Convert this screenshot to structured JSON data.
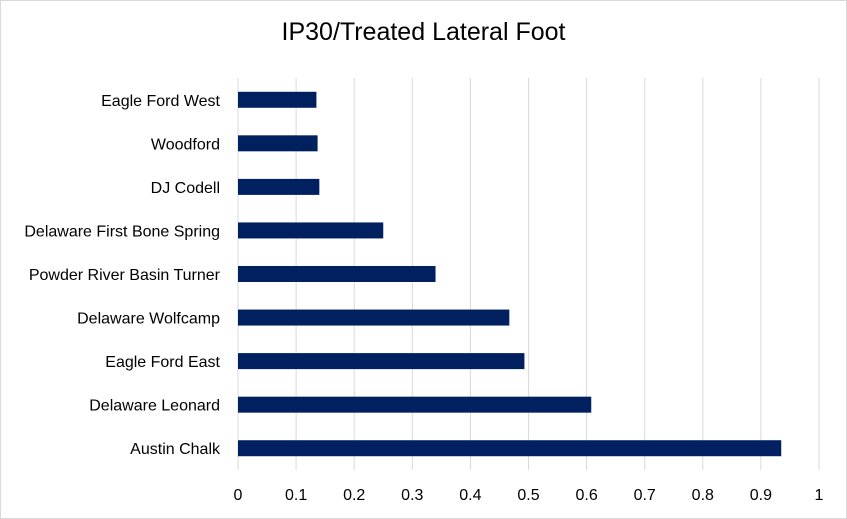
{
  "chart_data": {
    "type": "bar",
    "orientation": "horizontal",
    "title": "IP30/Treated Lateral Foot",
    "xlabel": "",
    "ylabel": "",
    "categories": [
      "Eagle Ford West",
      "Woodford",
      "DJ Codell",
      "Delaware First Bone Spring",
      "Powder River Basin Turner",
      "Delaware Wolfcamp",
      "Eagle Ford East",
      "Delaware Leonard",
      "Austin Chalk"
    ],
    "values": [
      0.135,
      0.137,
      0.14,
      0.25,
      0.34,
      0.467,
      0.493,
      0.608,
      0.935
    ],
    "xlim": [
      0,
      1
    ],
    "xticks": [
      "0",
      "0.1",
      "0.2",
      "0.3",
      "0.4",
      "0.5",
      "0.6",
      "0.7",
      "0.8",
      "0.9",
      "1"
    ],
    "grid": "vertical",
    "legend": "none",
    "bar_color": "#002060",
    "grid_color": "#d9d9d9"
  }
}
